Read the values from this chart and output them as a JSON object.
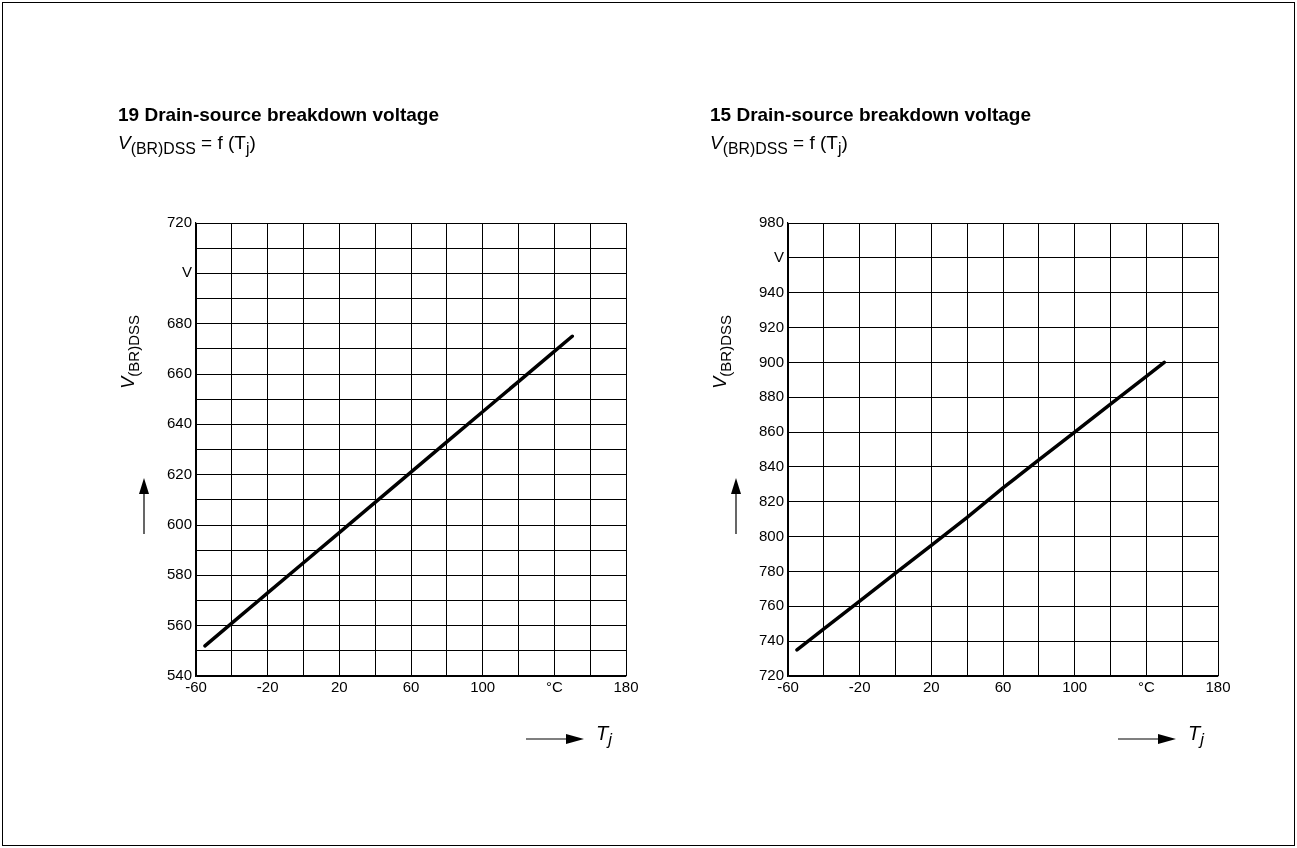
{
  "chart_data": [
    {
      "type": "line",
      "title": "19 Drain-source breakdown voltage",
      "subtitle": "V$_{(BR)DSS}$ = f (T$_{j}$)",
      "xlabel": "T$_{j}$",
      "ylabel": "V$_{(BR)DSS}$",
      "x": [
        -55,
        -40,
        -20,
        0,
        20,
        40,
        60,
        80,
        100,
        120,
        140,
        150
      ],
      "series": [
        {
          "color": "#000000",
          "values": [
            552,
            561,
            573,
            585,
            597,
            609,
            621,
            633,
            645,
            657,
            669,
            675
          ]
        }
      ],
      "xlim": [
        -60,
        180
      ],
      "xticks": [
        -60,
        {
          "value": -40,
          "label": null
        },
        -20,
        {
          "value": 0,
          "label": null
        },
        20,
        {
          "value": 40,
          "label": null
        },
        60,
        {
          "value": 80,
          "label": null
        },
        100,
        {
          "value": 120,
          "label": null
        },
        {
          "value": 140,
          "label": "°C"
        },
        {
          "value": 160,
          "label": null
        },
        180
      ],
      "ylim": [
        540,
        720
      ],
      "yticks": [
        540,
        {
          "value": 550,
          "label": null
        },
        560,
        {
          "value": 570,
          "label": null
        },
        580,
        {
          "value": 590,
          "label": null
        },
        600,
        {
          "value": 610,
          "label": null
        },
        620,
        {
          "value": 630,
          "label": null
        },
        640,
        {
          "value": 650,
          "label": null
        },
        660,
        {
          "value": 670,
          "label": null
        },
        680,
        {
          "value": 690,
          "label": null
        },
        {
          "value": 700,
          "label": "V"
        },
        {
          "value": 710,
          "label": null
        },
        720
      ],
      "grid": true,
      "legend": false,
      "marker": "none",
      "line_style": "solid"
    },
    {
      "type": "line",
      "title": "15 Drain-source breakdown voltage",
      "subtitle": "V$_{(BR)DSS}$ = f (T$_{j}$)",
      "xlabel": "T$_{j}$",
      "ylabel": "V$_{(BR)DSS}$",
      "x": [
        -55,
        -40,
        -20,
        0,
        20,
        40,
        60,
        80,
        100,
        120,
        140,
        150
      ],
      "series": [
        {
          "color": "#000000",
          "values": [
            735,
            747,
            763,
            779,
            795,
            811,
            828,
            844,
            860,
            876,
            892,
            900
          ]
        }
      ],
      "xlim": [
        -60,
        180
      ],
      "xticks": [
        -60,
        {
          "value": -40,
          "label": null
        },
        -20,
        {
          "value": 0,
          "label": null
        },
        20,
        {
          "value": 40,
          "label": null
        },
        60,
        {
          "value": 80,
          "label": null
        },
        100,
        {
          "value": 120,
          "label": null
        },
        {
          "value": 140,
          "label": "°C"
        },
        {
          "value": 160,
          "label": null
        },
        180
      ],
      "ylim": [
        720,
        980
      ],
      "yticks": [
        720,
        740,
        760,
        780,
        800,
        820,
        840,
        860,
        880,
        900,
        920,
        940,
        {
          "value": 960,
          "label": "V"
        },
        980
      ],
      "grid": true,
      "legend": false,
      "marker": "none",
      "line_style": "solid"
    }
  ]
}
